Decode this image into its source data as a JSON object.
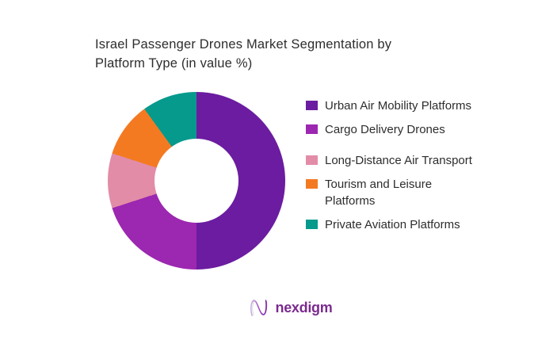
{
  "page": {
    "background": "#ffffff"
  },
  "chart_data": {
    "type": "pie",
    "subtype": "donut",
    "title": "Israel Passenger Drones Market Segmentation by\nPlatform Type (in value %)",
    "unit": "%",
    "series": [
      {
        "label": "Urban Air Mobility Platforms",
        "value": 50,
        "color": "#6b1ca0"
      },
      {
        "label": "Cargo Delivery Drones",
        "value": 20,
        "color": "#9c27b0"
      },
      {
        "label": "Long-Distance Air Transport",
        "value": 10,
        "color": "#e28ca8"
      },
      {
        "label": "Tourism and Leisure Platforms",
        "value": 10,
        "color": "#f47a22"
      },
      {
        "label": "Private Aviation Platforms",
        "value": 10,
        "color": "#069a8d"
      }
    ],
    "start_angle_deg": 0,
    "direction": "clockwise",
    "inner_radius_ratio": 0.47,
    "legend_position": "right",
    "legend_gap_after_index": 1,
    "data_labels_visible": false,
    "title_color": "#2d2d2d",
    "legend_text_color": "#2d2d2d"
  },
  "brand": {
    "name": "nexdigm",
    "text_color": "#7b2b90",
    "mark": "nexdigm-n-icon"
  }
}
